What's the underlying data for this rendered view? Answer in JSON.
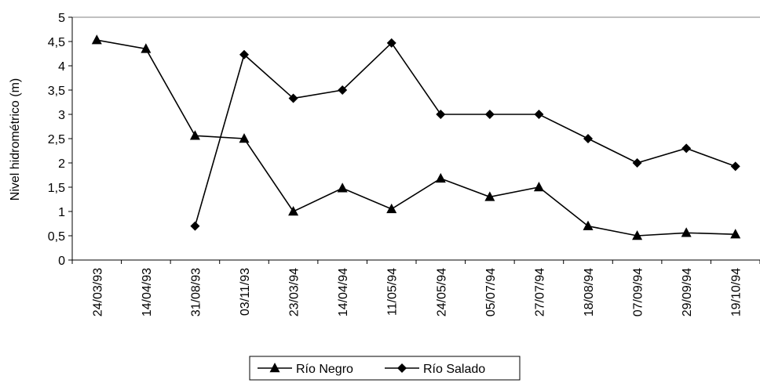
{
  "chart_data": {
    "type": "line",
    "title": "",
    "xlabel": "",
    "ylabel": "Nivel hidrométrico (m)",
    "ylim": [
      0,
      5
    ],
    "yticks": [
      "0",
      "0,5",
      "1",
      "1,5",
      "2",
      "2,5",
      "3",
      "3,5",
      "4",
      "4,5",
      "5"
    ],
    "categories": [
      "24/03/93",
      "14/04/93",
      "31/08/93",
      "03/11/93",
      "23/03/94",
      "14/04/94",
      "11/05/94",
      "24/05/94",
      "05/07/94",
      "27/07/94",
      "18/08/94",
      "07/09/94",
      "29/09/94",
      "19/10/94"
    ],
    "grid": "horizontal line at 5 only",
    "legend_position": "bottom-center",
    "series": [
      {
        "name": "Río Negro",
        "marker": "triangle",
        "color": "#000000",
        "values": [
          4.53,
          4.35,
          2.56,
          2.5,
          1.0,
          1.48,
          1.05,
          1.68,
          1.3,
          1.5,
          0.7,
          0.5,
          0.56,
          0.53
        ]
      },
      {
        "name": "Río Salado",
        "marker": "diamond",
        "color": "#000000",
        "values": [
          null,
          null,
          0.7,
          4.23,
          3.33,
          3.5,
          4.47,
          3.0,
          3.0,
          3.0,
          2.5,
          2.0,
          2.3,
          1.93
        ]
      }
    ]
  }
}
